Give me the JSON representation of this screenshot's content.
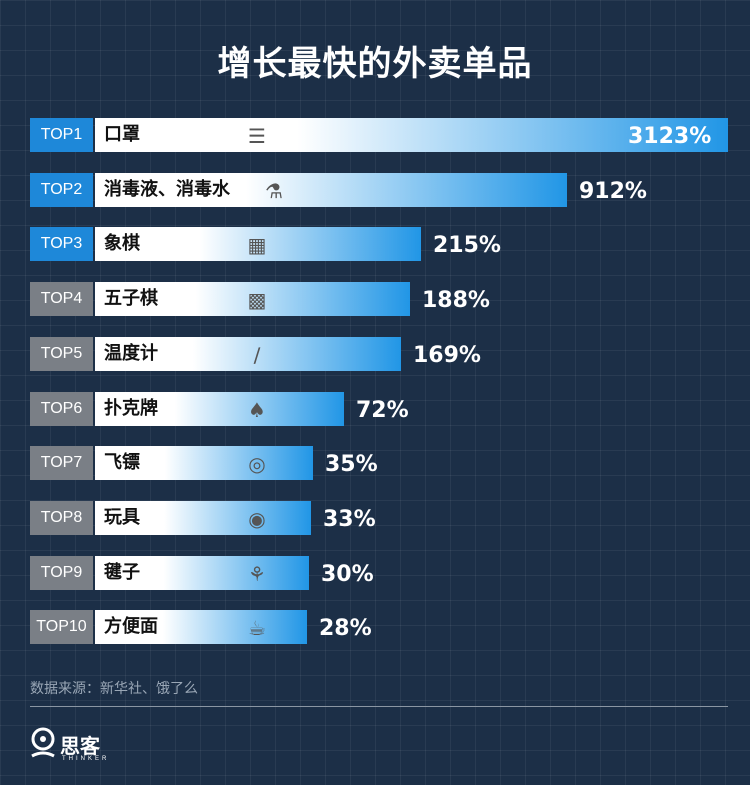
{
  "title": "增长最快的外卖单品",
  "source_note": "数据来源：新华社、饿了么",
  "logo": {
    "name": "思客",
    "tagline": "THINKER"
  },
  "colors": {
    "top_rank": "#1e88d9",
    "other_rank": "#7a7f86",
    "bar_end": "#2196e6"
  },
  "chart_data": {
    "type": "bar",
    "orientation": "horizontal",
    "title": "增长最快的外卖单品",
    "unit": "%",
    "ranks": [
      "TOP1",
      "TOP2",
      "TOP3",
      "TOP4",
      "TOP5",
      "TOP6",
      "TOP7",
      "TOP8",
      "TOP9",
      "TOP10"
    ],
    "categories": [
      "口罩",
      "消毒液、消毒水",
      "象棋",
      "五子棋",
      "温度计",
      "扑克牌",
      "飞镖",
      "玩具",
      "毽子",
      "方便面"
    ],
    "values": [
      3123,
      912,
      215,
      188,
      169,
      72,
      35,
      33,
      30,
      28
    ],
    "value_labels": [
      "3123%",
      "912%",
      "215%",
      "188%",
      "169%",
      "72%",
      "35%",
      "33%",
      "30%",
      "28%"
    ],
    "icons": [
      "mask-icon",
      "disinfectant-bottle-icon",
      "chinese-chess-icon",
      "gomoku-board-icon",
      "thermometer-icon",
      "playing-cards-icon",
      "dartboard-icon",
      "yoyo-toy-icon",
      "shuttlecock-icon",
      "instant-noodles-icon"
    ]
  }
}
